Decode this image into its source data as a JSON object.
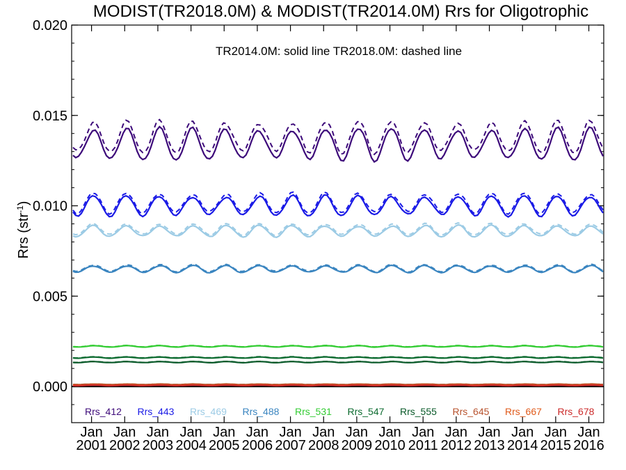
{
  "chart_data": {
    "type": "line",
    "title": "MODIST(TR2018.0M) & MODIST(TR2014.0M)  Rrs for Oligotrophic",
    "ylabel_main": "Rrs (str",
    "ylabel_sup": "-1",
    "ylabel_close": ")",
    "annotation": "TR2014.0M: solid line   TR2018.0M: dashed line",
    "ylim": [
      -0.002,
      0.02
    ],
    "yticks": [
      "0.000",
      "0.005",
      "0.010",
      "0.015",
      "0.020"
    ],
    "ytick_values": [
      0.0,
      0.005,
      0.01,
      0.015,
      0.02
    ],
    "xlim": [
      2000.4,
      2016.45
    ],
    "xtick_month": "Jan",
    "xtick_years": [
      "2001",
      "2002",
      "2003",
      "2004",
      "2005",
      "2006",
      "2007",
      "2008",
      "2009",
      "2010",
      "2011",
      "2012",
      "2013",
      "2014",
      "2015",
      "2016"
    ],
    "zero_line": true,
    "line_styles": {
      "tr2014": "solid",
      "tr2018": "dashed"
    },
    "series": [
      {
        "name": "Rrs_412",
        "color": "#3d0a7a",
        "base": 0.0134,
        "amp": 0.0011,
        "trend": -0.0,
        "dash_offset": 0.0008
      },
      {
        "name": "Rrs_443",
        "color": "#1a1ae6",
        "base": 0.01,
        "amp": 0.0007,
        "trend": 0.0,
        "dash_offset": 0.0003
      },
      {
        "name": "Rrs_469",
        "color": "#9ccbe5",
        "base": 0.0086,
        "amp": 0.0004,
        "trend": 0.0,
        "dash_offset": 0.0002
      },
      {
        "name": "Rrs_488",
        "color": "#3a85c0",
        "base": 0.0065,
        "amp": 0.00025,
        "trend": 0.0,
        "dash_offset": 0.0001
      },
      {
        "name": "Rrs_531",
        "color": "#33cc33",
        "base": 0.00222,
        "amp": 5e-05,
        "trend": 0.0,
        "dash_offset": 3e-05
      },
      {
        "name": "Rrs_547",
        "color": "#0d6b30",
        "base": 0.0016,
        "amp": 4e-05,
        "trend": 0.0,
        "dash_offset": 3e-05
      },
      {
        "name": "Rrs_555",
        "color": "#0a5a2a",
        "base": 0.00135,
        "amp": 4e-05,
        "trend": 0.0,
        "dash_offset": 2e-05
      },
      {
        "name": "Rrs_645",
        "color": "#b8532e",
        "base": 0.00012,
        "amp": 2e-05,
        "trend": 0.0,
        "dash_offset": 1e-05
      },
      {
        "name": "Rrs_667",
        "color": "#e05a1a",
        "base": 8e-05,
        "amp": 2e-05,
        "trend": 0.0,
        "dash_offset": 1e-05
      },
      {
        "name": "Rrs_678",
        "color": "#cc2a2a",
        "base": 6e-05,
        "amp": 2e-05,
        "trend": 0.0,
        "dash_offset": 1e-05
      }
    ]
  }
}
